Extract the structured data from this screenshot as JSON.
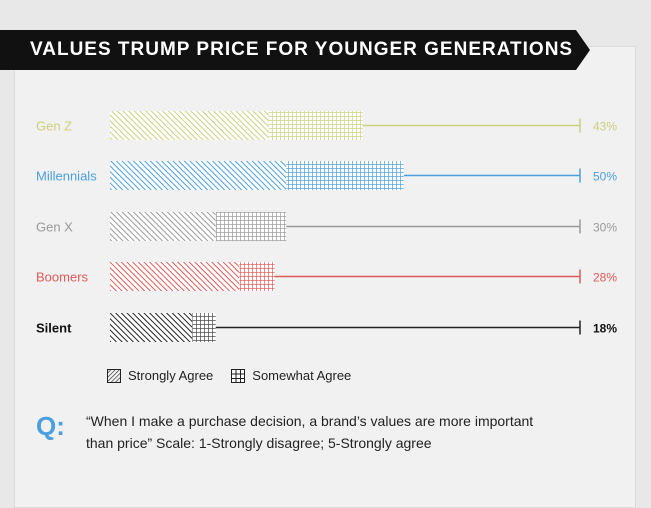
{
  "title": "VALUES TRUMP PRICE FOR YOUNGER GENERATIONS",
  "legend": {
    "strongly_agree": "Strongly Agree",
    "somewhat_agree": "Somewhat Agree"
  },
  "question": {
    "mark": "Q:",
    "text": "“When I make a purchase decision, a brand’s values are more important than price” Scale: 1-Strongly disagree; 5-Strongly agree"
  },
  "colors": {
    "title_bg": "#111111",
    "gen_z": "#cbcf7e",
    "millennials": "#4a9fe0",
    "gen_x": "#9a9a9a",
    "boomers": "#e05a5a",
    "silent": "#222222"
  },
  "chart_data": {
    "type": "bar",
    "orientation": "horizontal",
    "stacked": true,
    "categories": [
      "Gen Z",
      "Millennials",
      "Gen X",
      "Boomers",
      "Silent"
    ],
    "series": [
      {
        "name": "Strongly Agree",
        "values": [
          27,
          30,
          18,
          22,
          14
        ]
      },
      {
        "name": "Somewhat Agree",
        "values": [
          16,
          20,
          12,
          6,
          4
        ]
      }
    ],
    "totals": [
      "43%",
      "50%",
      "30%",
      "28%",
      "18%"
    ],
    "xlim": [
      0,
      80
    ],
    "title": "VALUES TRUMP PRICE FOR YOUNGER GENERATIONS",
    "legend_position": "bottom-left",
    "grid": false
  }
}
